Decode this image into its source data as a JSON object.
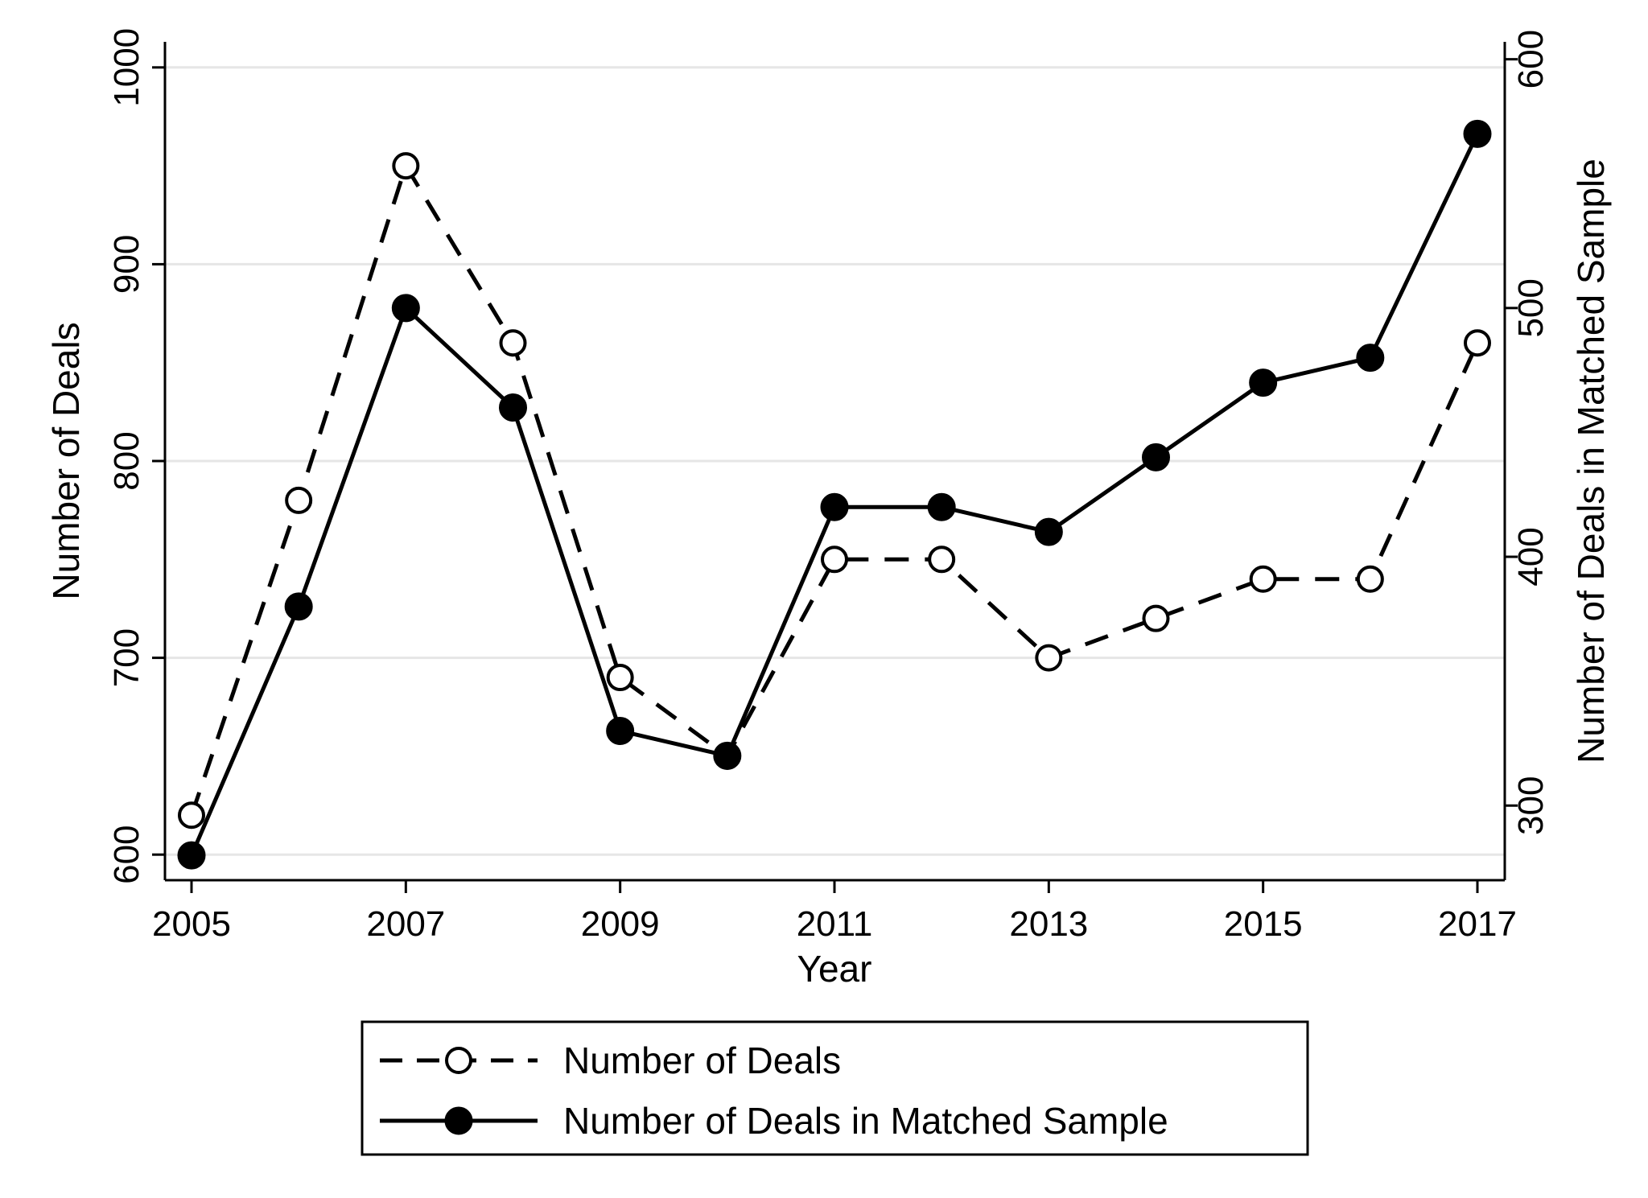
{
  "chart_data": {
    "type": "line",
    "x": [
      2005,
      2006,
      2007,
      2008,
      2009,
      2010,
      2011,
      2012,
      2013,
      2014,
      2015,
      2016,
      2017
    ],
    "xlabel": "Year",
    "xticks": [
      "2005",
      "2007",
      "2009",
      "2011",
      "2013",
      "2015",
      "2017"
    ],
    "ylabel_left": "Number of Deals",
    "ylim_left": [
      587,
      1013
    ],
    "yticks_left": [
      "600",
      "700",
      "800",
      "900",
      "1000"
    ],
    "ylabel_right": "Number of Deals in Matched Sample",
    "ylim_right": [
      270,
      607
    ],
    "yticks_right": [
      "300",
      "400",
      "500",
      "600"
    ],
    "grid": "horizontal",
    "legend_position": "bottom",
    "series": [
      {
        "name": "Number of Deals",
        "axis": "left",
        "style": "dashed",
        "marker": "hollow-circle",
        "values": [
          620,
          780,
          950,
          860,
          690,
          650,
          750,
          750,
          700,
          720,
          740,
          740,
          860
        ]
      },
      {
        "name": "Number of Deals in Matched Sample",
        "axis": "right",
        "style": "solid",
        "marker": "filled-circle",
        "values": [
          280,
          380,
          500,
          460,
          330,
          320,
          420,
          420,
          410,
          440,
          470,
          480,
          570
        ]
      }
    ],
    "colors": {
      "line": "#000000",
      "grid": "#e6e6e6",
      "background": "#ffffff"
    }
  }
}
